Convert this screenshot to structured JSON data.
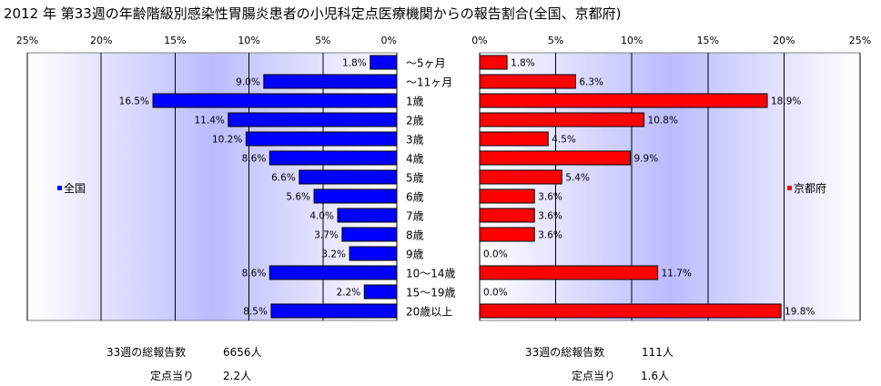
{
  "title": "2012 年 第33週の年齢階級別感染性胃腸炎患者の小児科定点医療機関からの報告割合(全国、京都府)",
  "colors": {
    "zenkoku": "#0000ff",
    "kyoto": "#ff0000",
    "plot_bg_edge": "#ffffff",
    "plot_bg_center": "#bbbbff"
  },
  "chart_data": [
    {
      "type": "bar",
      "orientation": "horizontal",
      "name": "全国",
      "categories": [
        "～5ヶ月",
        "～11ヶ月",
        "1歳",
        "2歳",
        "3歳",
        "4歳",
        "5歳",
        "6歳",
        "7歳",
        "8歳",
        "9歳",
        "10～14歳",
        "15～19歳",
        "20歳以上"
      ],
      "values": [
        1.8,
        9.0,
        16.5,
        11.4,
        10.2,
        8.6,
        6.6,
        5.6,
        4.0,
        3.7,
        3.2,
        8.6,
        2.2,
        8.5
      ],
      "value_labels": [
        "1.8%",
        "9.0%",
        "16.5%",
        "11.4%",
        "10.2%",
        "8.6%",
        "6.6%",
        "5.6%",
        "4.0%",
        "3.7%",
        "3.2%",
        "8.6%",
        "2.2%",
        "8.5%"
      ],
      "xlim": [
        0,
        25
      ],
      "x_reversed": true,
      "ticks": [
        "25%",
        "20%",
        "15%",
        "10%",
        "5%",
        "0%"
      ],
      "legend": "全国",
      "legend_position": "left",
      "grid": true
    },
    {
      "type": "bar",
      "orientation": "horizontal",
      "name": "京都府",
      "categories": [
        "～5ヶ月",
        "～11ヶ月",
        "1歳",
        "2歳",
        "3歳",
        "4歳",
        "5歳",
        "6歳",
        "7歳",
        "8歳",
        "9歳",
        "10～14歳",
        "15～19歳",
        "20歳以上"
      ],
      "values": [
        1.8,
        6.3,
        18.9,
        10.8,
        4.5,
        9.9,
        5.4,
        3.6,
        3.6,
        3.6,
        0.0,
        11.7,
        0.0,
        19.8
      ],
      "value_labels": [
        "1.8%",
        "6.3%",
        "18.9%",
        "10.8%",
        "4.5%",
        "9.9%",
        "5.4%",
        "3.6%",
        "3.6%",
        "3.6%",
        "0.0%",
        "11.7%",
        "0.0%",
        "19.8%"
      ],
      "xlim": [
        0,
        25
      ],
      "x_reversed": false,
      "ticks": [
        "0%",
        "5%",
        "10%",
        "15%",
        "20%",
        "25%"
      ],
      "legend": "京都府",
      "legend_position": "right",
      "grid": true
    }
  ],
  "stats": {
    "zenkoku": {
      "total_label": "33週の総報告数",
      "total_value": "6656人",
      "per_label": "定点当り",
      "per_value": "2.2人"
    },
    "kyoto": {
      "total_label": "33週の総報告数",
      "total_value": "111人",
      "per_label": "定点当り",
      "per_value": "1.6人"
    }
  }
}
